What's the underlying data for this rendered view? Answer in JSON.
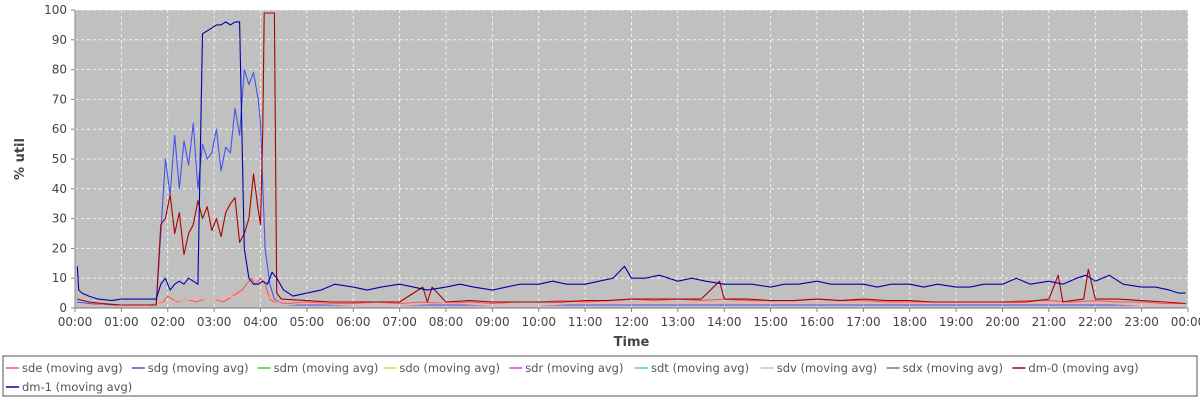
{
  "chart_data": {
    "type": "line",
    "title": "",
    "xlabel": "Time",
    "ylabel": "% util",
    "ylim": [
      0,
      100
    ],
    "yticks": [
      0,
      10,
      20,
      30,
      40,
      50,
      60,
      70,
      80,
      90,
      100
    ],
    "xlim": [
      "00:00",
      "24:00"
    ],
    "xtick_labels": [
      "00:00",
      "01:00",
      "02:00",
      "03:00",
      "04:00",
      "05:00",
      "06:00",
      "07:00",
      "08:00",
      "09:00",
      "10:00",
      "11:00",
      "12:00",
      "13:00",
      "14:00",
      "15:00",
      "16:00",
      "17:00",
      "18:00",
      "19:00",
      "20:00",
      "21:00",
      "22:00",
      "23:00",
      "00:00"
    ],
    "grid": true,
    "plot_background": "#c0c0c0",
    "legend_position": "bottom",
    "series": [
      {
        "name": "sde (moving avg)",
        "color": "#ff5555",
        "x": [
          0.05,
          0.3,
          0.5,
          0.8,
          1.0,
          1.3,
          1.6,
          1.8,
          1.9,
          2.0,
          2.1,
          2.2,
          2.4,
          2.6,
          2.8,
          3.0,
          3.2,
          3.4,
          3.6,
          3.8,
          3.9,
          4.0,
          4.1,
          4.2,
          4.3,
          4.6,
          5.0,
          5.5,
          6.0,
          6.5,
          7.0,
          7.5,
          8.0,
          8.5,
          9.0,
          9.5,
          10.0,
          10.5,
          11.0,
          11.5,
          12.0,
          12.5,
          13.0,
          13.5,
          14.0,
          14.5,
          15.0,
          15.5,
          16.0,
          16.5,
          17.0,
          17.5,
          18.0,
          18.5,
          19.0,
          19.5,
          20.0,
          20.5,
          21.0,
          21.5,
          22.0,
          22.5,
          23.0,
          23.5,
          23.95
        ],
        "values": [
          3,
          2,
          1.5,
          1,
          1,
          1,
          1,
          1.5,
          2,
          4,
          3,
          2,
          3,
          2,
          3,
          3,
          2,
          4,
          6,
          10,
          8,
          10,
          8,
          3,
          2,
          1.5,
          2,
          1.5,
          1.5,
          2,
          1.5,
          2,
          1.5,
          2,
          1.5,
          2,
          2,
          2.5,
          2,
          2.5,
          3,
          2.5,
          3,
          2.5,
          3,
          2.5,
          2.5,
          2.5,
          3,
          2.5,
          2.5,
          2,
          2,
          2,
          2,
          2,
          2,
          2.5,
          2.5,
          2,
          2.5,
          2,
          2,
          1.5,
          1.5
        ]
      },
      {
        "name": "sdg (moving avg)",
        "color": "#4455ee",
        "x": [
          0.05,
          0.3,
          0.6,
          1.0,
          1.4,
          1.75,
          1.85,
          1.95,
          2.05,
          2.15,
          2.25,
          2.35,
          2.45,
          2.55,
          2.65,
          2.75,
          2.85,
          2.95,
          3.05,
          3.15,
          3.25,
          3.35,
          3.45,
          3.55,
          3.65,
          3.75,
          3.85,
          3.95,
          4.0,
          4.1,
          4.2,
          4.3,
          4.5,
          5.0,
          6.0,
          7.0,
          8.0,
          9.0,
          10.0,
          11.0,
          12.0,
          13.0,
          14.0,
          15.0,
          16.0,
          17.0,
          18.0,
          19.0,
          20.0,
          21.0,
          22.0,
          23.0,
          23.95
        ],
        "values": [
          2,
          1.5,
          1,
          1,
          1,
          1,
          25,
          50,
          38,
          58,
          40,
          56,
          48,
          62,
          40,
          55,
          50,
          52,
          60,
          46,
          54,
          52,
          67,
          58,
          80,
          75,
          79,
          70,
          62,
          20,
          8,
          3,
          1,
          1,
          1,
          1,
          1,
          1,
          1,
          1,
          1,
          1,
          1,
          1,
          1,
          1,
          1,
          1,
          1,
          1,
          1,
          1,
          1
        ]
      },
      {
        "name": "sdm (moving avg)",
        "color": "#44cc44",
        "x": [
          0.05,
          23.95
        ],
        "values": [
          0,
          0
        ]
      },
      {
        "name": "sdo (moving avg)",
        "color": "#dddd33",
        "x": [
          0.05,
          23.95
        ],
        "values": [
          0,
          0
        ]
      },
      {
        "name": "sdr (moving avg)",
        "color": "#dd44dd",
        "x": [
          0.05,
          23.95
        ],
        "values": [
          0,
          0
        ]
      },
      {
        "name": "sdt (moving avg)",
        "color": "#55ccee",
        "x": [
          0.05,
          23.95
        ],
        "values": [
          0,
          0
        ]
      },
      {
        "name": "sdv (moving avg)",
        "color": "#ffaaaa",
        "x": [
          0.05,
          0.5,
          1.0,
          1.5,
          2.0,
          2.5,
          3.0,
          3.5,
          4.0,
          4.5,
          5.0,
          6.0,
          7.0,
          8.0,
          9.0,
          10.0,
          11.0,
          12.0,
          13.0,
          14.0,
          15.0,
          16.0,
          17.0,
          18.0,
          19.0,
          20.0,
          21.0,
          22.0,
          23.0,
          23.95
        ],
        "values": [
          1,
          1,
          0.5,
          0.5,
          2,
          3,
          3,
          4,
          5,
          1,
          1.5,
          1,
          1,
          1.5,
          1,
          1,
          1.5,
          1.5,
          1.5,
          2,
          1.5,
          1.5,
          1.5,
          1.5,
          1.5,
          1.5,
          1.5,
          1.5,
          1,
          1
        ]
      },
      {
        "name": "sdx (moving avg)",
        "color": "#777777",
        "x": [
          0.05,
          23.95
        ],
        "values": [
          0,
          0
        ]
      },
      {
        "name": "dm-0 (moving avg)",
        "color": "#aa0000",
        "x": [
          0.05,
          0.3,
          0.6,
          1.0,
          1.4,
          1.75,
          1.85,
          1.95,
          2.05,
          2.15,
          2.25,
          2.35,
          2.45,
          2.55,
          2.65,
          2.75,
          2.85,
          2.95,
          3.05,
          3.15,
          3.25,
          3.35,
          3.45,
          3.55,
          3.65,
          3.75,
          3.85,
          3.95,
          4.0,
          4.05,
          4.08,
          4.3,
          4.35,
          4.45,
          5.0,
          5.5,
          6.0,
          6.5,
          7.0,
          7.5,
          7.6,
          7.7,
          8.0,
          8.5,
          9.0,
          9.5,
          10.0,
          10.5,
          11.0,
          11.5,
          12.0,
          12.5,
          13.0,
          13.5,
          13.9,
          14.0,
          14.1,
          14.5,
          15.0,
          15.5,
          16.0,
          16.5,
          17.0,
          17.5,
          18.0,
          18.5,
          19.0,
          19.5,
          20.0,
          20.5,
          21.0,
          21.2,
          21.3,
          21.5,
          21.75,
          21.85,
          22.0,
          22.5,
          23.0,
          23.5,
          23.95
        ],
        "values": [
          3,
          2,
          1.5,
          1,
          1,
          1,
          28,
          30,
          38,
          25,
          32,
          18,
          25,
          28,
          36,
          30,
          34,
          26,
          30,
          24,
          32,
          35,
          37,
          22,
          25,
          30,
          45,
          33,
          28,
          60,
          99,
          99,
          5,
          3,
          2.5,
          2,
          2,
          2,
          2,
          7,
          2,
          7,
          2,
          2.5,
          2,
          2,
          2,
          2,
          2.5,
          2.5,
          3,
          3,
          3,
          3,
          9,
          3,
          3,
          3,
          2.5,
          2.5,
          3,
          2.5,
          3,
          2.5,
          2.5,
          2,
          2,
          2,
          2,
          2,
          3,
          11,
          2,
          2.5,
          3,
          13,
          3,
          3,
          2.5,
          2,
          1.5
        ]
      },
      {
        "name": "dm-1 (moving avg)",
        "color": "#0000aa",
        "x": [
          0.05,
          0.08,
          0.15,
          0.3,
          0.5,
          0.8,
          1.0,
          1.3,
          1.6,
          1.75,
          1.85,
          1.95,
          2.05,
          2.15,
          2.25,
          2.35,
          2.45,
          2.55,
          2.65,
          2.75,
          2.85,
          2.95,
          3.05,
          3.15,
          3.25,
          3.35,
          3.45,
          3.55,
          3.65,
          3.75,
          3.85,
          3.95,
          4.05,
          4.15,
          4.25,
          4.35,
          4.5,
          4.7,
          5.0,
          5.3,
          5.6,
          6.0,
          6.3,
          6.6,
          7.0,
          7.3,
          7.6,
          8.0,
          8.3,
          8.6,
          9.0,
          9.3,
          9.6,
          10.0,
          10.3,
          10.6,
          11.0,
          11.3,
          11.6,
          11.85,
          12.0,
          12.3,
          12.6,
          13.0,
          13.3,
          13.6,
          14.0,
          14.3,
          14.6,
          15.0,
          15.3,
          15.6,
          16.0,
          16.3,
          16.6,
          17.0,
          17.3,
          17.6,
          18.0,
          18.3,
          18.6,
          19.0,
          19.3,
          19.6,
          20.0,
          20.3,
          20.6,
          21.0,
          21.3,
          21.6,
          21.8,
          22.0,
          22.3,
          22.6,
          23.0,
          23.3,
          23.6,
          23.8,
          23.95
        ],
        "values": [
          14,
          6,
          5,
          4,
          3,
          2.5,
          3,
          3,
          3,
          3,
          8,
          10,
          6,
          8,
          9,
          8,
          10,
          9,
          8,
          92,
          93,
          94,
          95,
          95,
          96,
          95,
          96,
          96,
          20,
          10,
          8,
          8,
          9,
          8,
          12,
          10,
          6,
          4,
          5,
          6,
          8,
          7,
          6,
          7,
          8,
          7,
          6,
          7,
          8,
          7,
          6,
          7,
          8,
          8,
          9,
          8,
          8,
          9,
          10,
          14,
          10,
          10,
          11,
          9,
          10,
          9,
          8,
          8,
          8,
          7,
          8,
          8,
          9,
          8,
          8,
          8,
          7,
          8,
          8,
          7,
          8,
          7,
          7,
          8,
          8,
          10,
          8,
          9,
          8,
          10,
          11,
          9,
          11,
          8,
          7,
          7,
          6,
          5,
          5
        ]
      }
    ]
  }
}
